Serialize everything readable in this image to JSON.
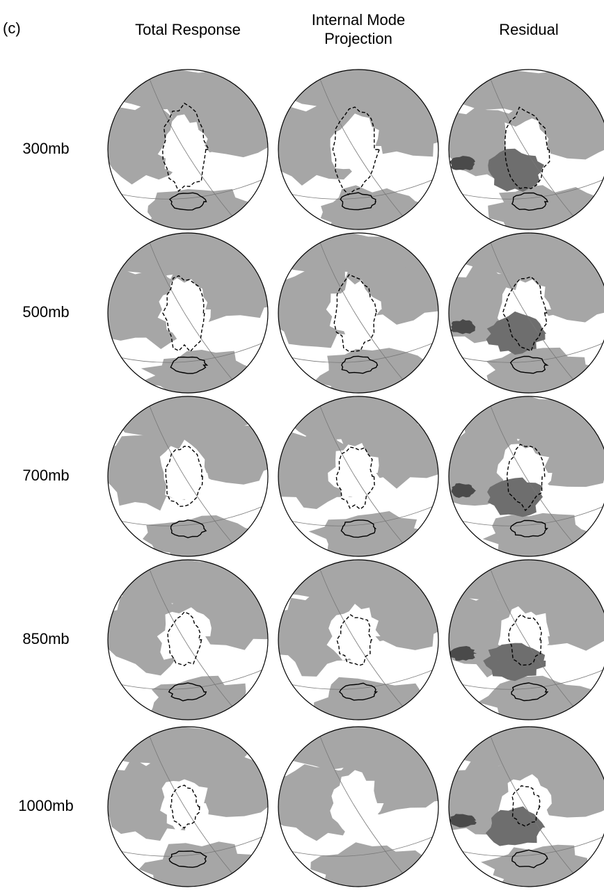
{
  "panel_label": "(c)",
  "columns": [
    [
      "Total Response"
    ],
    [
      "Internal Mode",
      "Projection"
    ],
    [
      "Residual"
    ]
  ],
  "rows": [
    "300mb",
    "500mb",
    "700mb",
    "850mb",
    "1000mb"
  ]
}
